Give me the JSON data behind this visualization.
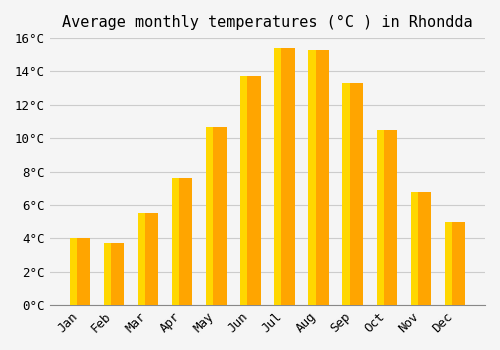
{
  "title": "Average monthly temperatures (°C ) in Rhondda",
  "months": [
    "Jan",
    "Feb",
    "Mar",
    "Apr",
    "May",
    "Jun",
    "Jul",
    "Aug",
    "Sep",
    "Oct",
    "Nov",
    "Dec"
  ],
  "values": [
    4.0,
    3.7,
    5.5,
    7.6,
    10.7,
    13.7,
    15.4,
    15.3,
    13.3,
    10.5,
    6.8,
    5.0
  ],
  "bar_color": "#FFA500",
  "bar_color_light": "#FFD700",
  "background_color": "#f5f5f5",
  "grid_color": "#cccccc",
  "ylim": [
    0,
    16
  ],
  "yticks": [
    0,
    2,
    4,
    6,
    8,
    10,
    12,
    14,
    16
  ],
  "ylabel_suffix": "°C",
  "title_fontsize": 11,
  "tick_fontsize": 9,
  "font_family": "monospace"
}
